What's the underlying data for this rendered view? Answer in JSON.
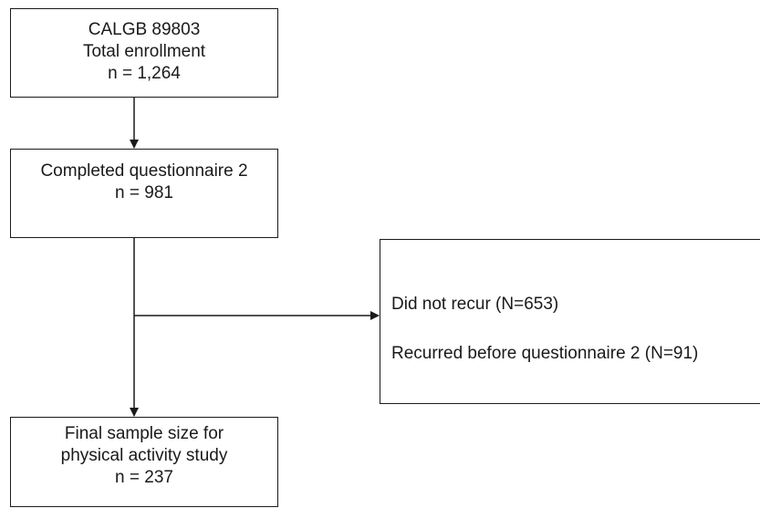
{
  "boxes": {
    "enrollment": {
      "lines": [
        "CALGB 89803",
        "Total enrollment",
        "n = 1,264"
      ]
    },
    "questionnaire": {
      "lines": [
        "Completed questionnaire 2",
        "n = 981"
      ]
    },
    "final": {
      "lines": [
        "Final sample size for",
        "physical activity study",
        "n = 237"
      ]
    },
    "excluded": {
      "lines": [
        "Did not recur (N=653)",
        "Recurred before questionnaire 2 (N=91)"
      ]
    }
  }
}
